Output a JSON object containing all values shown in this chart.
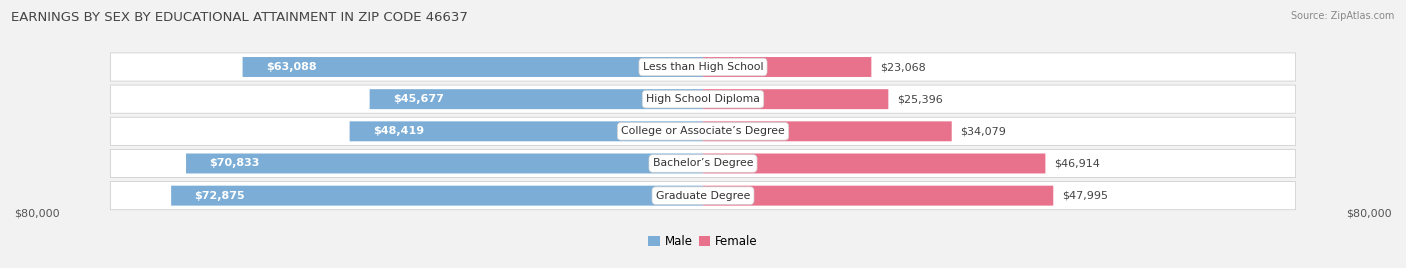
{
  "title": "EARNINGS BY SEX BY EDUCATIONAL ATTAINMENT IN ZIP CODE 46637",
  "source": "Source: ZipAtlas.com",
  "categories": [
    "Less than High School",
    "High School Diploma",
    "College or Associate’s Degree",
    "Bachelor’s Degree",
    "Graduate Degree"
  ],
  "male_values": [
    63088,
    45677,
    48419,
    70833,
    72875
  ],
  "female_values": [
    23068,
    25396,
    34079,
    46914,
    47995
  ],
  "male_color": "#7badd6",
  "female_color": "#e8728c",
  "max_value": 80000,
  "axis_label_left": "$80,000",
  "axis_label_right": "$80,000",
  "male_legend": "Male",
  "female_legend": "Female",
  "bg_color": "#f2f2f2",
  "row_bg_color": "#ffffff",
  "row_border_color": "#d0d0d0",
  "title_color": "#444444",
  "title_fontsize": 9.5,
  "bar_height": 0.62,
  "label_fontsize": 8.0,
  "cat_fontsize": 7.8
}
